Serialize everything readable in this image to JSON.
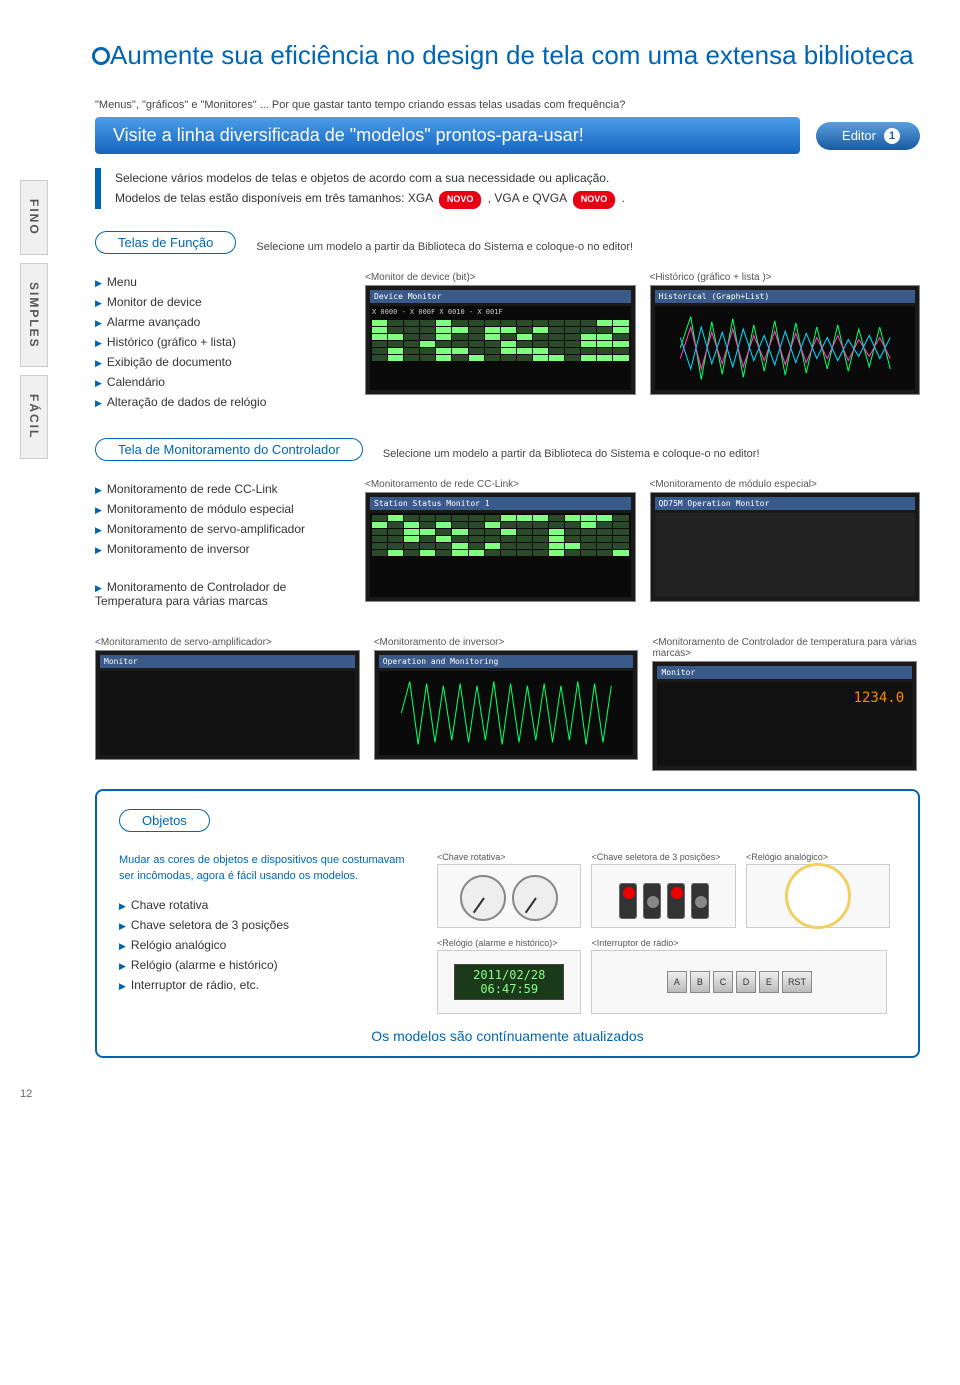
{
  "page_number": "12",
  "main_title": "Aumente sua eficiência no design de tela com uma extensa biblioteca",
  "side_tabs": [
    "FINO",
    "SIMPLES",
    "FÁCIL"
  ],
  "intro_small": "\"Menus\", \"gráficos\" e \"Monitores\" ... Por que gastar tanto tempo criando essas telas usadas com frequência?",
  "banner_text": "Visite a linha diversificada de \"modelos\" prontos-para-usar!",
  "editor_badge": {
    "label": "Editor",
    "num": "1"
  },
  "accent_line1": "Selecione vários modelos de telas e objetos de acordo com a sua necessidade ou aplicação.",
  "accent_line2_prefix": "Modelos de telas estão disponíveis em três tamanhos: XGA",
  "accent_line2_mid": ", VGA e QVGA",
  "accent_line2_suffix": ".",
  "novo": "NOVO",
  "sections": {
    "funcao": {
      "pill": "Telas de Função",
      "note": "Selecione um modelo a partir da Biblioteca do Sistema e coloque-o no editor!",
      "items": [
        "Menu",
        "Monitor de device",
        "Alarme avançado",
        "Histórico (gráfico + lista)",
        "Exibição de documento",
        "Calendário",
        "Alteração de dados de relógio"
      ],
      "thumbs": [
        {
          "label": "<Monitor de device (bit)>",
          "header": "Device Monitor",
          "sub": "X 0000 - X 000F    X 0010 - X 001F",
          "type": "bits"
        },
        {
          "label": "<Histórico (gráfico + lista )>",
          "header": "Historical (Graph+List)",
          "type": "wave"
        }
      ]
    },
    "controlador": {
      "pill": "Tela de Monitoramento do Controlador",
      "note": "Selecione um modelo a partir da Biblioteca do Sistema e coloque-o no editor!",
      "items": [
        "Monitoramento de rede CC-Link",
        "Monitoramento de módulo especial",
        "Monitoramento de servo-amplificador",
        "Monitoramento de inversor"
      ],
      "items2": [
        "Monitoramento de Controlador de Temperatura para várias marcas"
      ],
      "thumbs": [
        {
          "label": "<Monitoramento de rede CC-Link>",
          "header": "Station Status Monitor 1",
          "type": "grid"
        },
        {
          "label": "<Monitoramento de módulo especial>",
          "header": "QD75M Operation Monitor",
          "type": "panel"
        }
      ],
      "thumbs_row2": [
        {
          "label": "<Monitoramento de servo-amplificador>",
          "header": "Monitor",
          "type": "table"
        },
        {
          "label": "<Monitoramento de inversor>",
          "header": "Operation and Monitoring",
          "type": "wave"
        },
        {
          "label": "<Monitoramento de Controlador de temperatura para várias marcas>",
          "header": "Monitor",
          "type": "digits"
        }
      ]
    },
    "objetos": {
      "pill": "Objetos",
      "intro": "Mudar as cores de objetos e dispositivos que costumavam ser incômodas, agora é fácil usando os modelos.",
      "items": [
        "Chave rotativa",
        "Chave seletora de 3 posições",
        "Relógio analógico",
        "Relógio (alarme e histórico)",
        "Interruptor de rádio, etc."
      ],
      "thumbs": [
        {
          "label": "<Chave rotativa>",
          "type": "dial"
        },
        {
          "label": "<Chave seletora de 3 posições>",
          "type": "toggle"
        },
        {
          "label": "<Relógio analógico>",
          "type": "clock"
        },
        {
          "label": "<Relógio (alarme e histórico)>",
          "type": "digiclock",
          "value": "2011/02/28\n06:47:59"
        },
        {
          "label": "<Interruptor de rádio>",
          "type": "radio",
          "buttons": [
            "A",
            "B",
            "C",
            "D",
            "E",
            "RST"
          ]
        }
      ]
    }
  },
  "footer_note": "Os modelos são contínuamente atualizados",
  "colors": {
    "brand": "#0066b3",
    "red": "#e60012",
    "wave_green": "#00ff66",
    "wave_cyan": "#00d8ff",
    "wave_pink": "#ff40c0"
  }
}
